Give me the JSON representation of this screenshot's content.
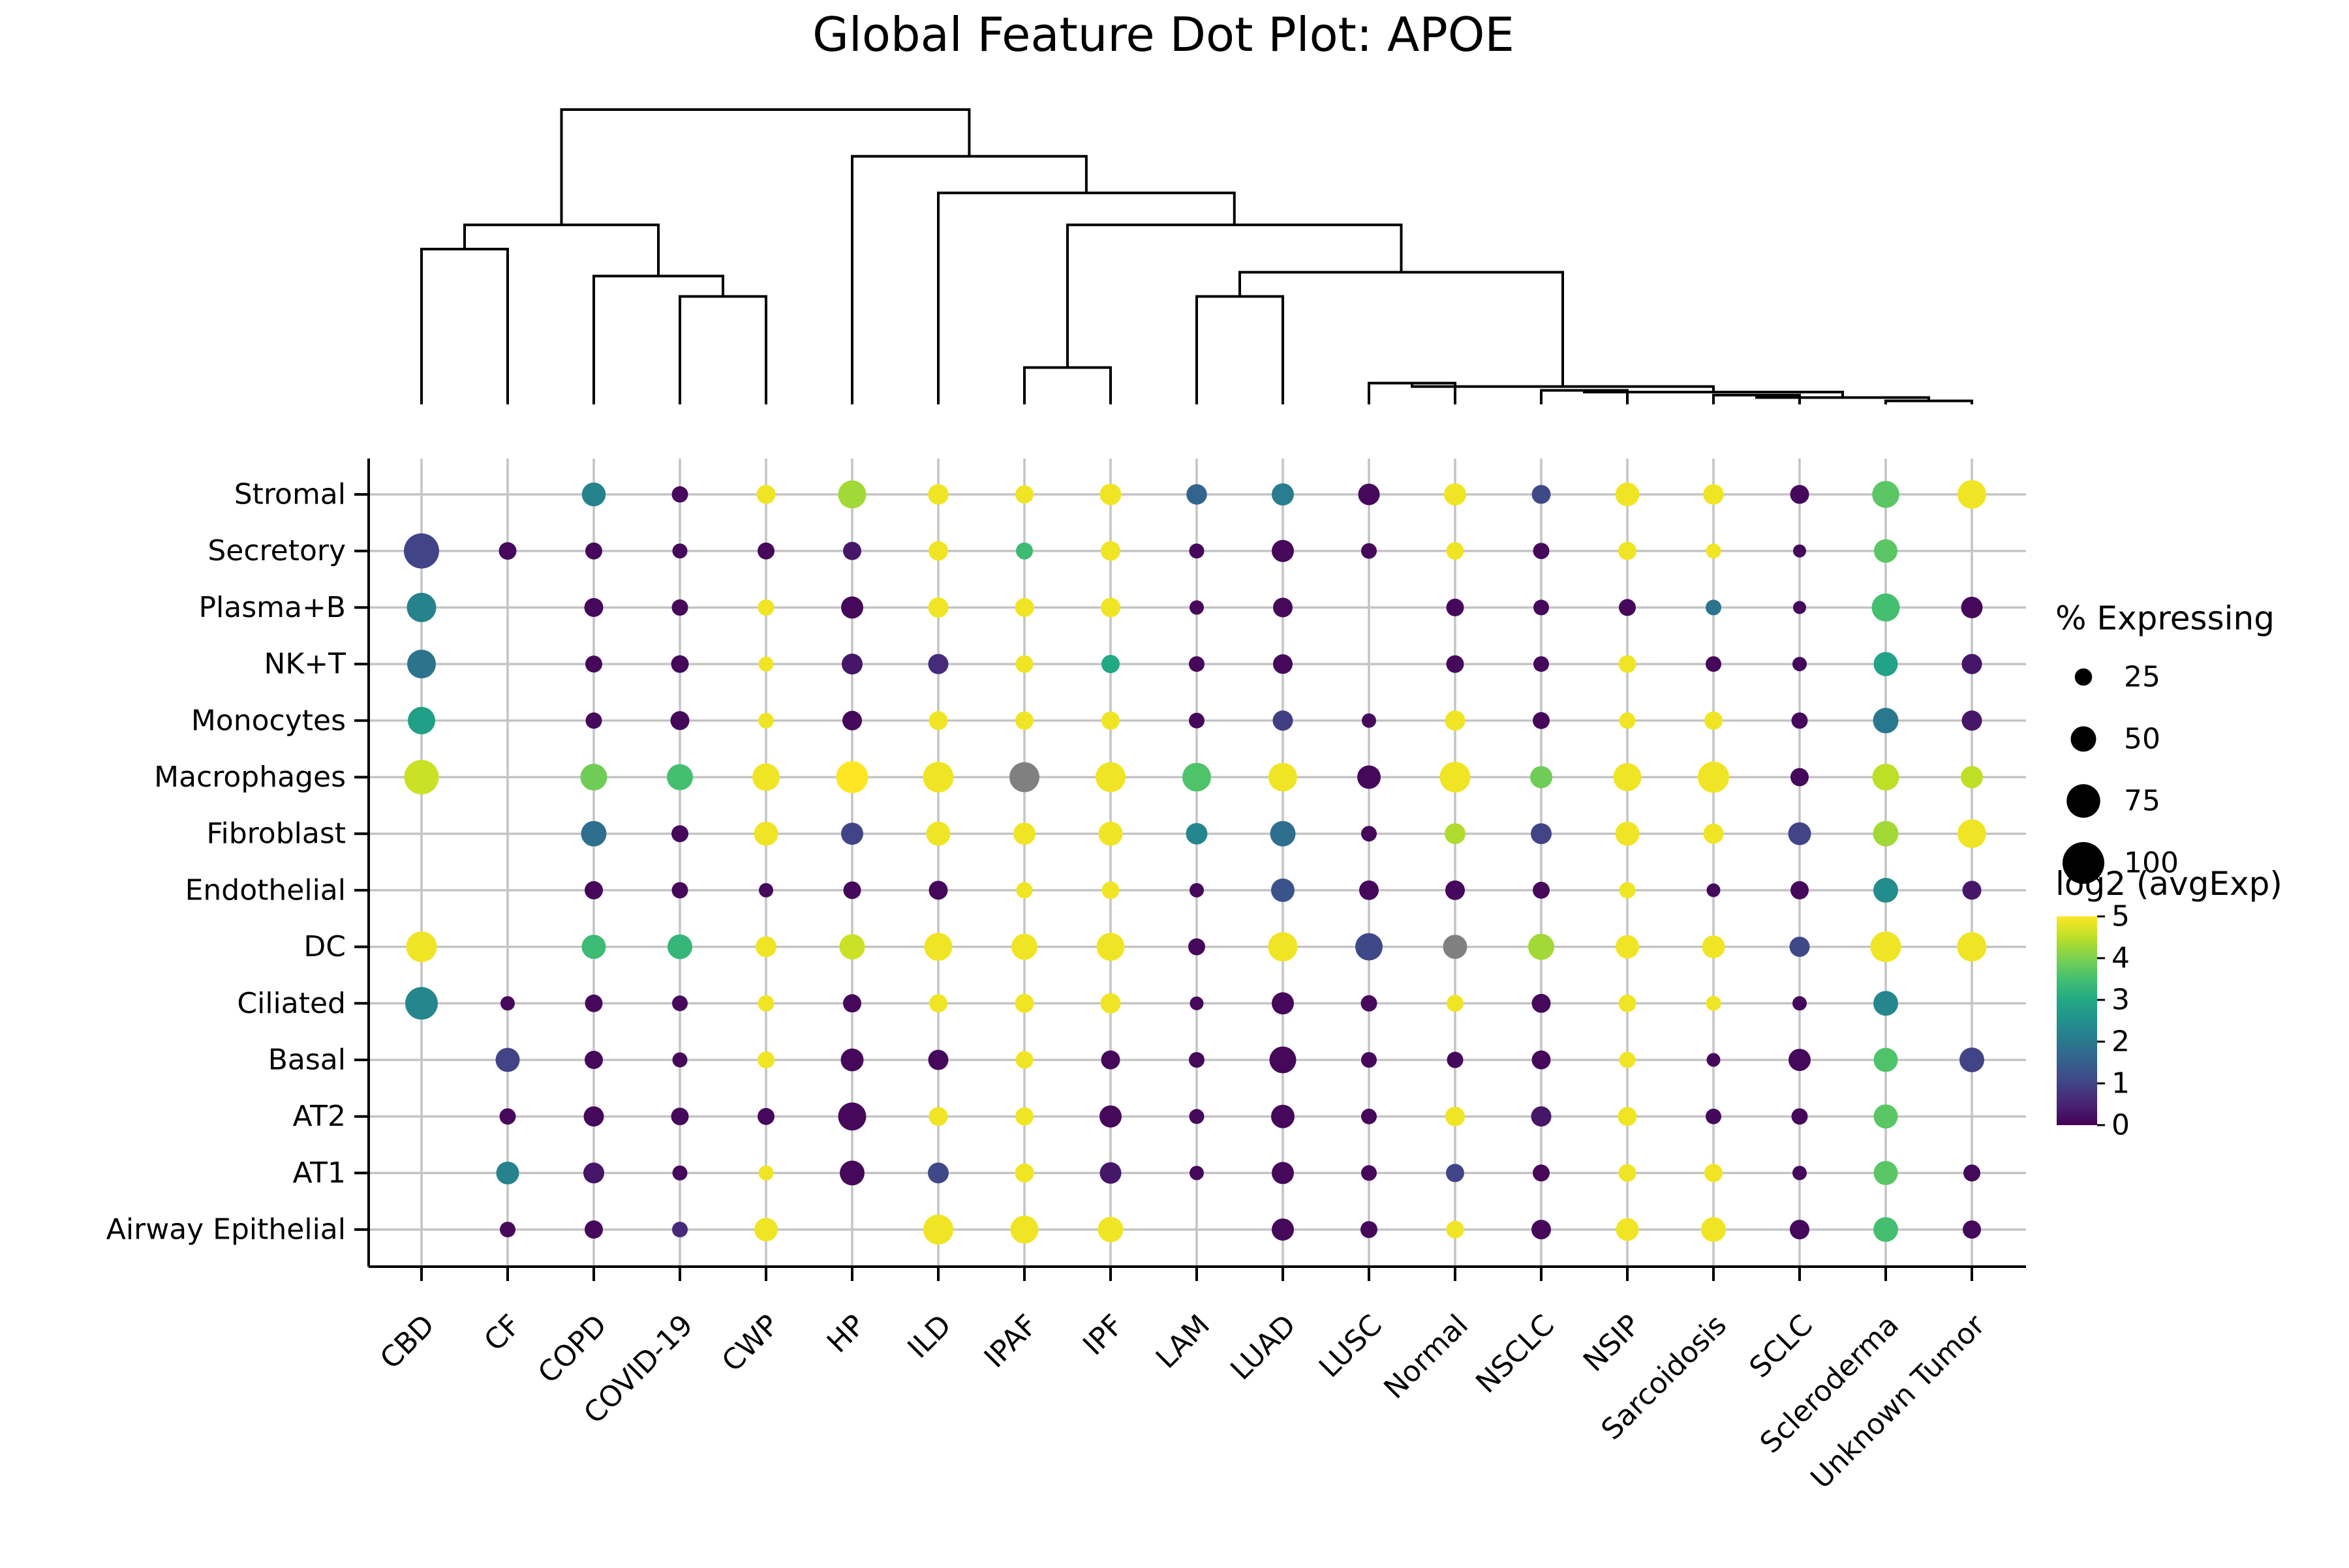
{
  "chart_data": {
    "type": "dotplot",
    "title": "Global Feature Dot Plot: APOE",
    "diseases": [
      "CBD",
      "CF",
      "COPD",
      "COVID-19",
      "CWP",
      "HP",
      "ILD",
      "IPAF",
      "IPF",
      "LAM",
      "LUAD",
      "LUSC",
      "Normal",
      "NSCLC",
      "NSIP",
      "Sarcoidosis",
      "SCLC",
      "Scleroderma",
      "Unknown Tumor"
    ],
    "cell_types": [
      "Stromal",
      "Secretory",
      "Plasma+B",
      "NK+T",
      "Monocytes",
      "Macrophages",
      "Fibroblast",
      "Endothelial",
      "DC",
      "Ciliated",
      "Basal",
      "AT2",
      "AT1",
      "Airway Epithelial"
    ],
    "size_legend": {
      "title": "% Expressing",
      "labels": [
        "25",
        "50",
        "75",
        "100"
      ],
      "values": [
        25,
        50,
        75,
        100
      ]
    },
    "color_legend": {
      "title": "log2 (avgExp)",
      "min": 0,
      "max": 5,
      "tick_labels": [
        "0",
        "1",
        "2",
        "3",
        "4",
        "5"
      ],
      "ticks": [
        0,
        1,
        2,
        3,
        4,
        5
      ]
    },
    "na_color": "#808080",
    "points": {
      "Stromal": [
        null,
        null,
        [
          45,
          2.2
        ],
        [
          22,
          0.1
        ],
        [
          30,
          4.9
        ],
        [
          58,
          4.3
        ],
        [
          35,
          4.9
        ],
        [
          28,
          4.9
        ],
        [
          38,
          4.9
        ],
        [
          35,
          1.6
        ],
        [
          40,
          2.1
        ],
        [
          38,
          0.1
        ],
        [
          40,
          4.9
        ],
        [
          30,
          1.1
        ],
        [
          45,
          4.9
        ],
        [
          35,
          4.9
        ],
        [
          30,
          0.1
        ],
        [
          55,
          3.7
        ],
        [
          60,
          4.9
        ]
      ],
      "Secretory": [
        [
          80,
          1.0
        ],
        [
          26,
          0.1
        ],
        [
          24,
          0.1
        ],
        [
          18,
          0.1
        ],
        [
          24,
          0.1
        ],
        [
          28,
          0.3
        ],
        [
          32,
          4.9
        ],
        [
          24,
          3.4
        ],
        [
          32,
          4.9
        ],
        [
          18,
          0.1
        ],
        [
          40,
          0.1
        ],
        [
          20,
          0.1
        ],
        [
          26,
          4.9
        ],
        [
          22,
          0.1
        ],
        [
          28,
          4.9
        ],
        [
          18,
          4.9
        ],
        [
          12,
          0.1
        ],
        [
          44,
          3.7
        ],
        null
      ],
      "Plasma+B": [
        [
          62,
          2.2
        ],
        null,
        [
          30,
          0.1
        ],
        [
          22,
          0.1
        ],
        [
          22,
          4.9
        ],
        [
          40,
          0.1
        ],
        [
          34,
          4.9
        ],
        [
          30,
          4.9
        ],
        [
          32,
          4.9
        ],
        [
          16,
          0.1
        ],
        [
          32,
          0.1
        ],
        null,
        [
          26,
          0.1
        ],
        [
          20,
          0.1
        ],
        [
          24,
          0.1
        ],
        [
          20,
          1.9
        ],
        [
          12,
          0.1
        ],
        [
          58,
          3.5
        ],
        [
          38,
          0.1
        ]
      ],
      "NK+T": [
        [
          60,
          1.9
        ],
        null,
        [
          24,
          0.1
        ],
        [
          26,
          0.1
        ],
        [
          18,
          4.9
        ],
        [
          36,
          0.3
        ],
        [
          34,
          0.6
        ],
        [
          26,
          4.9
        ],
        [
          28,
          3.0
        ],
        [
          20,
          0.1
        ],
        [
          32,
          0.1
        ],
        null,
        [
          26,
          0.1
        ],
        [
          20,
          0.1
        ],
        [
          26,
          4.9
        ],
        [
          20,
          0.1
        ],
        [
          16,
          0.1
        ],
        [
          46,
          2.9
        ],
        [
          34,
          0.3
        ]
      ],
      "Monocytes": [
        [
          56,
          2.8
        ],
        null,
        [
          22,
          0.1
        ],
        [
          30,
          0.1
        ],
        [
          20,
          4.9
        ],
        [
          32,
          0.1
        ],
        [
          30,
          4.9
        ],
        [
          28,
          4.9
        ],
        [
          28,
          4.9
        ],
        [
          20,
          0.1
        ],
        [
          34,
          0.9
        ],
        [
          16,
          0.1
        ],
        [
          34,
          4.9
        ],
        [
          24,
          0.1
        ],
        [
          22,
          4.9
        ],
        [
          28,
          4.9
        ],
        [
          22,
          0.1
        ],
        [
          50,
          2.0
        ],
        [
          34,
          0.3
        ]
      ],
      "Macrophages": [
        [
          78,
          4.6
        ],
        null,
        [
          54,
          3.9
        ],
        [
          52,
          3.5
        ],
        [
          56,
          4.9
        ],
        [
          70,
          5.0
        ],
        [
          66,
          4.9
        ],
        [
          64,
          null
        ],
        [
          64,
          4.9
        ],
        [
          60,
          3.6
        ],
        [
          60,
          4.9
        ],
        [
          44,
          0.1
        ],
        [
          66,
          4.9
        ],
        [
          40,
          3.9
        ],
        [
          58,
          4.9
        ],
        [
          68,
          4.9
        ],
        [
          28,
          0.1
        ],
        [
          54,
          4.5
        ],
        [
          40,
          4.5
        ]
      ],
      "Fibroblast": [
        null,
        null,
        [
          50,
          1.8
        ],
        [
          24,
          0.1
        ],
        [
          46,
          4.9
        ],
        [
          40,
          1.0
        ],
        [
          46,
          4.9
        ],
        [
          40,
          4.9
        ],
        [
          46,
          4.9
        ],
        [
          38,
          2.3
        ],
        [
          50,
          1.8
        ],
        [
          20,
          0.1
        ],
        [
          36,
          4.4
        ],
        [
          36,
          1.0
        ],
        [
          46,
          4.9
        ],
        [
          34,
          4.9
        ],
        [
          42,
          1.0
        ],
        [
          50,
          4.3
        ],
        [
          60,
          4.9
        ]
      ],
      "Endothelial": [
        null,
        null,
        [
          28,
          0.1
        ],
        [
          22,
          0.1
        ],
        [
          16,
          0.1
        ],
        [
          26,
          0.1
        ],
        [
          30,
          0.1
        ],
        [
          22,
          4.9
        ],
        [
          26,
          4.9
        ],
        [
          16,
          0.1
        ],
        [
          44,
          1.3
        ],
        [
          32,
          0.1
        ],
        [
          32,
          0.1
        ],
        [
          24,
          0.1
        ],
        [
          22,
          4.9
        ],
        [
          14,
          0.1
        ],
        [
          28,
          0.1
        ],
        [
          48,
          2.4
        ],
        [
          30,
          0.3
        ]
      ],
      "DC": [
        [
          66,
          4.9
        ],
        null,
        [
          46,
          3.4
        ],
        [
          48,
          3.3
        ],
        [
          36,
          4.9
        ],
        [
          50,
          4.6
        ],
        [
          58,
          4.9
        ],
        [
          52,
          4.9
        ],
        [
          58,
          4.9
        ],
        [
          24,
          0.1
        ],
        [
          62,
          4.9
        ],
        [
          56,
          1.1
        ],
        [
          46,
          null
        ],
        [
          52,
          4.3
        ],
        [
          44,
          4.9
        ],
        [
          42,
          4.9
        ],
        [
          34,
          1.1
        ],
        [
          66,
          4.9
        ],
        [
          62,
          4.9
        ]
      ],
      "Ciliated": [
        [
          72,
          2.3
        ],
        [
          16,
          0.1
        ],
        [
          26,
          0.1
        ],
        [
          20,
          0.1
        ],
        [
          22,
          4.9
        ],
        [
          28,
          0.1
        ],
        [
          28,
          4.9
        ],
        [
          30,
          4.9
        ],
        [
          34,
          4.9
        ],
        [
          14,
          0.1
        ],
        [
          40,
          0.1
        ],
        [
          22,
          0.1
        ],
        [
          24,
          4.9
        ],
        [
          30,
          0.1
        ],
        [
          26,
          4.9
        ],
        [
          18,
          4.9
        ],
        [
          16,
          0.1
        ],
        [
          48,
          2.3
        ],
        null
      ],
      "Basal": [
        null,
        [
          46,
          1.0
        ],
        [
          28,
          0.1
        ],
        [
          18,
          0.1
        ],
        [
          24,
          4.9
        ],
        [
          42,
          0.1
        ],
        [
          34,
          0.1
        ],
        [
          26,
          4.9
        ],
        [
          30,
          0.1
        ],
        [
          20,
          0.1
        ],
        [
          54,
          0.1
        ],
        [
          20,
          0.1
        ],
        [
          22,
          0.1
        ],
        [
          30,
          0.1
        ],
        [
          22,
          4.9
        ],
        [
          14,
          0.1
        ],
        [
          40,
          0.1
        ],
        [
          46,
          3.6
        ],
        [
          48,
          1.0
        ]
      ],
      "AT2": [
        null,
        [
          22,
          0.1
        ],
        [
          34,
          0.1
        ],
        [
          26,
          0.1
        ],
        [
          24,
          0.1
        ],
        [
          58,
          0.1
        ],
        [
          30,
          4.9
        ],
        [
          28,
          4.9
        ],
        [
          40,
          0.1
        ],
        [
          18,
          0.1
        ],
        [
          44,
          0.1
        ],
        [
          20,
          0.1
        ],
        [
          32,
          4.9
        ],
        [
          34,
          0.3
        ],
        [
          30,
          4.9
        ],
        [
          20,
          0.1
        ],
        [
          22,
          0.1
        ],
        [
          46,
          3.7
        ],
        null
      ],
      "AT1": [
        null,
        [
          42,
          2.2
        ],
        [
          36,
          0.3
        ],
        [
          18,
          0.1
        ],
        [
          18,
          4.9
        ],
        [
          48,
          0.1
        ],
        [
          36,
          1.1
        ],
        [
          30,
          4.9
        ],
        [
          38,
          0.3
        ],
        [
          16,
          0.1
        ],
        [
          40,
          0.1
        ],
        [
          20,
          0.1
        ],
        [
          28,
          1.0
        ],
        [
          24,
          0.1
        ],
        [
          26,
          4.9
        ],
        [
          28,
          4.9
        ],
        [
          16,
          0.1
        ],
        [
          46,
          3.7
        ],
        [
          24,
          0.1
        ]
      ],
      "Airway Epithelial": [
        null,
        [
          20,
          0.1
        ],
        [
          28,
          0.1
        ],
        [
          20,
          0.6
        ],
        [
          44,
          4.9
        ],
        null,
        [
          64,
          4.9
        ],
        [
          58,
          4.9
        ],
        [
          50,
          4.9
        ],
        null,
        [
          40,
          0.1
        ],
        [
          24,
          0.1
        ],
        [
          26,
          4.9
        ],
        [
          32,
          0.1
        ],
        [
          42,
          4.9
        ],
        [
          48,
          4.9
        ],
        [
          32,
          0.1
        ],
        [
          48,
          3.5
        ],
        [
          28,
          0.1
        ]
      ]
    },
    "dendrogram": {
      "leaf_order": [
        "CBD",
        "CF",
        "COPD",
        "COVID-19",
        "CWP",
        "HP",
        "ILD",
        "IPAF",
        "IPF",
        "LAM",
        "LUAD",
        "LUSC",
        "Normal",
        "NSCLC",
        "NSIP",
        "Sarcoidosis",
        "SCLC",
        "Scleroderma",
        "Unknown Tumor"
      ],
      "merges": [
        {
          "left": "CBD",
          "right": "CF",
          "height": 0.55
        },
        {
          "left": "COVID-19",
          "right": "CWP",
          "height": 0.3
        },
        {
          "left": "COPD",
          "right": "m1",
          "height": 0.4
        },
        {
          "left": "m0",
          "right": "m2",
          "height": 0.7
        },
        {
          "left": "IPAF",
          "right": "IPF",
          "height": 0.05
        },
        {
          "left": "LAM",
          "right": "LUAD",
          "height": 0.3
        },
        {
          "left": "LUSC",
          "right": "Normal",
          "height": 0.02
        },
        {
          "left": "NSCLC",
          "right": "NSIP",
          "height": 0.01
        },
        {
          "left": "Sarcoidosis",
          "right": "SCLC",
          "height": 0.005
        },
        {
          "left": "Scleroderma",
          "right": "Unknown Tumor",
          "height": 0.001
        },
        {
          "left": "m8",
          "right": "m9",
          "height": 0.003
        },
        {
          "left": "m7",
          "right": "m10",
          "height": 0.008
        },
        {
          "left": "m6",
          "right": "m11",
          "height": 0.015
        },
        {
          "left": "m5",
          "right": "m12",
          "height": 0.42
        },
        {
          "left": "m4",
          "right": "m13",
          "height": 0.7
        },
        {
          "left": "ILD",
          "right": "m14",
          "height": 0.92
        },
        {
          "left": "HP",
          "right": "m15",
          "height": 1.2
        },
        {
          "left": "m3",
          "right": "m16",
          "height": 1.6
        }
      ]
    }
  }
}
